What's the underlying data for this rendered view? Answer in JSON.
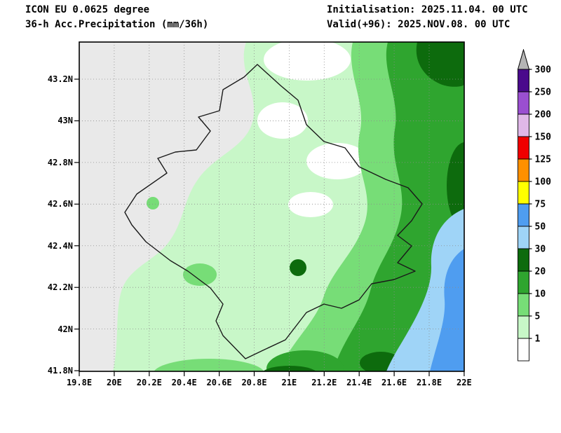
{
  "header": {
    "model_line": "ICON EU 0.0625 degree",
    "product_line": "36-h Acc.Precipitation (mm/36h)",
    "init_line": "Initialisation: 2025.11.04. 00 UTC",
    "valid_line": "Valid(+96): 2025.NOV.08. 00 UTC"
  },
  "map": {
    "x_tick_labels": [
      "19.8E",
      "20E",
      "20.2E",
      "20.4E",
      "20.6E",
      "20.8E",
      "21E",
      "21.2E",
      "21.4E",
      "21.6E",
      "21.8E",
      "22E"
    ],
    "y_tick_labels": [
      "43.2N",
      "43N",
      "42.8N",
      "42.6N",
      "42.4N",
      "42.2N",
      "42N",
      "41.8N"
    ],
    "no_data_color": "#e9e9e9",
    "outline_region": "country-border"
  },
  "legend": {
    "unit": "mm/36h",
    "boundary_labels": [
      "300",
      "250",
      "200",
      "150",
      "125",
      "100",
      "75",
      "50",
      "30",
      "20",
      "10",
      "5",
      "1"
    ],
    "overflow_color": "#b5b5b5",
    "segments_top_to_bottom": [
      {
        "range": "250-300",
        "color": "#4a0a8c"
      },
      {
        "range": "200-250",
        "color": "#9a4fd0"
      },
      {
        "range": "150-200",
        "color": "#e0b8e8"
      },
      {
        "range": "125-150",
        "color": "#f00000"
      },
      {
        "range": "100-125",
        "color": "#ff9000"
      },
      {
        "range": "75-100",
        "color": "#ffff00"
      },
      {
        "range": "50-75",
        "color": "#4f9df0"
      },
      {
        "range": "30-50",
        "color": "#9fd4f7"
      },
      {
        "range": "20-30",
        "color": "#0d6b0d"
      },
      {
        "range": "10-20",
        "color": "#2fa52f"
      },
      {
        "range": "5-10",
        "color": "#77dd77"
      },
      {
        "range": "1-5",
        "color": "#c8f7c8"
      },
      {
        "range": "<1",
        "color": "#ffffff"
      }
    ]
  }
}
